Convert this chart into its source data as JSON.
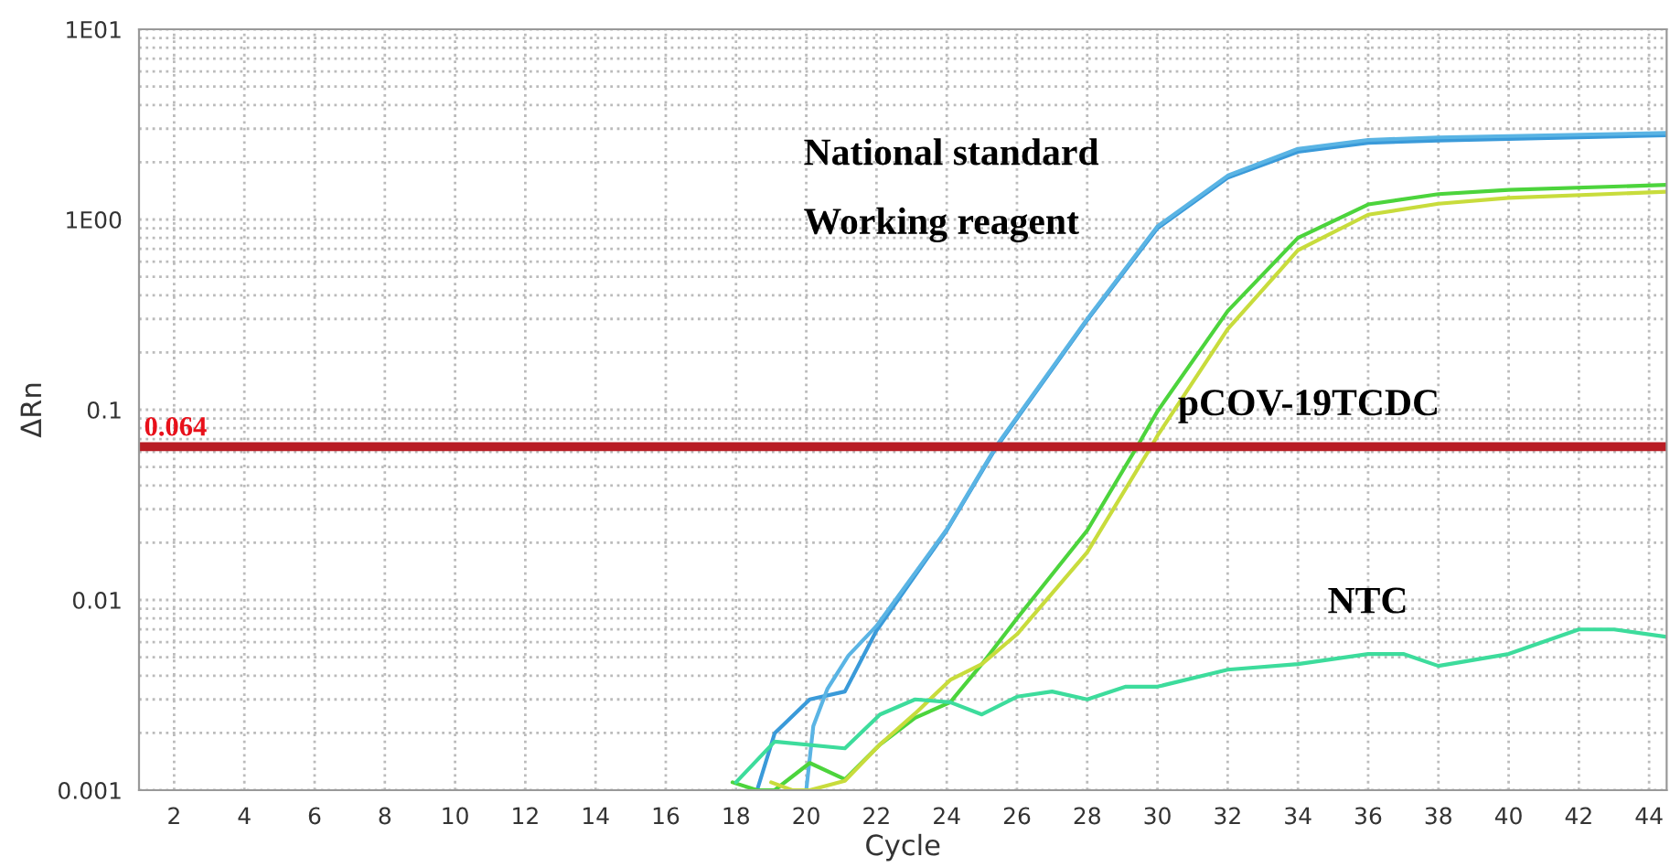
{
  "chart_data": {
    "type": "line",
    "xlabel": "Cycle",
    "ylabel": "ΔRn",
    "log": "y",
    "xlim": [
      1,
      44.5
    ],
    "xticks": [
      2,
      4,
      6,
      8,
      10,
      12,
      14,
      16,
      18,
      20,
      22,
      24,
      26,
      28,
      30,
      32,
      34,
      36,
      38,
      40,
      42,
      44
    ],
    "ylim": [
      0.001,
      10
    ],
    "yticks": [
      {
        "value": 0.001,
        "label": "0.001"
      },
      {
        "value": 0.01,
        "label": "0.01"
      },
      {
        "value": 0.1,
        "label": "0.1"
      },
      {
        "value": 1,
        "label": "1E00"
      },
      {
        "value": 10,
        "label": "1E01"
      }
    ],
    "grid": true,
    "marker": "none",
    "line_style": "solid",
    "series": [
      {
        "color": "#3a9ad9",
        "x": [
          18.6,
          19.1,
          20.1,
          21.1,
          22,
          24,
          25.4,
          28,
          30,
          32,
          34,
          36,
          38,
          44.5
        ],
        "values": [
          0.001,
          0.00199,
          0.003,
          0.0033,
          0.0069,
          0.0232,
          0.063,
          0.296,
          0.9,
          1.66,
          2.27,
          2.53,
          2.6,
          2.77
        ]
      },
      {
        "color": "#5ab4e4",
        "x": [
          20,
          20.2,
          20.6,
          21.2,
          22,
          24,
          25.4,
          28,
          30,
          32,
          34,
          36,
          38,
          44.5
        ],
        "values": [
          0.001,
          0.00217,
          0.0034,
          0.0051,
          0.0073,
          0.0235,
          0.064,
          0.3,
          0.92,
          1.7,
          2.35,
          2.62,
          2.7,
          2.85
        ]
      },
      {
        "color": "#4cd43c",
        "x": [
          17.9,
          18.6,
          19.1,
          20.1,
          21.1,
          22.1,
          23.1,
          24.1,
          25,
          26,
          28,
          29.4,
          30,
          32,
          34,
          36,
          38,
          40,
          44.5
        ],
        "values": [
          0.0011,
          0.001,
          0.001,
          0.00139,
          0.00114,
          0.00174,
          0.0024,
          0.0029,
          0.0046,
          0.008,
          0.0232,
          0.063,
          0.098,
          0.33,
          0.8,
          1.2,
          1.36,
          1.43,
          1.52
        ]
      },
      {
        "color": "#c8dc3c",
        "x": [
          19,
          19.6,
          20.1,
          21.1,
          22.1,
          23.1,
          24.1,
          25,
          26,
          28,
          29.8,
          30,
          32,
          34,
          36,
          38,
          40,
          44.5
        ],
        "values": [
          0.0011,
          0.001,
          0.001,
          0.00112,
          0.00174,
          0.00253,
          0.0038,
          0.0046,
          0.0066,
          0.0178,
          0.063,
          0.073,
          0.265,
          0.69,
          1.06,
          1.21,
          1.3,
          1.4
        ]
      },
      {
        "color": "#3ddc9c",
        "x": [
          18,
          19.1,
          21.1,
          22.1,
          23.1,
          24.1,
          25,
          26,
          27,
          28,
          29.1,
          30,
          32,
          34,
          36,
          37,
          38,
          40,
          42,
          43,
          44.5
        ],
        "values": [
          0.0011,
          0.0018,
          0.00166,
          0.0025,
          0.003,
          0.0029,
          0.0025,
          0.0031,
          0.0033,
          0.003,
          0.0035,
          0.0035,
          0.0043,
          0.0046,
          0.0052,
          0.0052,
          0.0045,
          0.0052,
          0.007,
          0.007,
          0.0064
        ]
      }
    ],
    "ref_lines": [
      {
        "axis": "y",
        "value": 0.064,
        "label": "0.064",
        "color": "#b81c24"
      }
    ],
    "annotations": [
      "National standard",
      "Working reagent",
      "pCOV-19TCDC",
      "NTC"
    ]
  }
}
